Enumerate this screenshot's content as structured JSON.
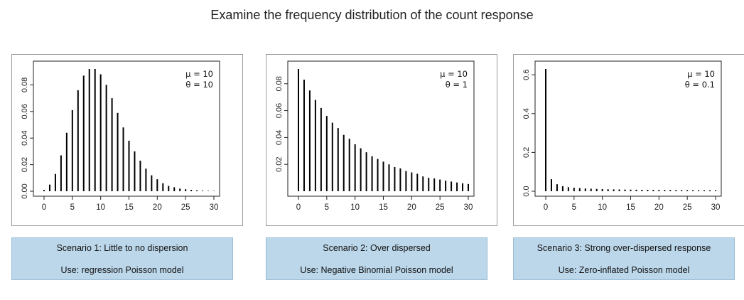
{
  "page": {
    "title": "Examine the frequency distribution of the count response"
  },
  "chart_data": [
    {
      "type": "bar",
      "x": [
        0,
        1,
        2,
        3,
        4,
        5,
        6,
        7,
        8,
        9,
        10,
        11,
        12,
        13,
        14,
        15,
        16,
        17,
        18,
        19,
        20,
        21,
        22,
        23,
        24,
        25,
        26,
        27,
        28,
        29,
        30
      ],
      "values": [
        0.001,
        0.005,
        0.013,
        0.027,
        0.044,
        0.061,
        0.076,
        0.087,
        0.092,
        0.092,
        0.088,
        0.08,
        0.07,
        0.059,
        0.048,
        0.038,
        0.03,
        0.023,
        0.017,
        0.012,
        0.009,
        0.006,
        0.004,
        0.003,
        0.002,
        0.0015,
        0.001,
        0.0007,
        0.0005,
        0.0003,
        0.0002
      ],
      "xlim": [
        0,
        30
      ],
      "ylim": [
        0,
        0.092
      ],
      "xticks": [
        "0",
        "5",
        "10",
        "15",
        "20",
        "25",
        "30"
      ],
      "yticks": [
        "0.00",
        "0.02",
        "0.04",
        "0.06",
        "0.08"
      ],
      "ytick_values": [
        0,
        0.02,
        0.04,
        0.06,
        0.08
      ],
      "legend": [
        "μ = 10",
        "θ = 10"
      ],
      "legend_position": "top-right",
      "caption": [
        "Scenario 1: Little to no dispersion",
        "Use: regression Poisson model"
      ]
    },
    {
      "type": "bar",
      "x": [
        0,
        1,
        2,
        3,
        4,
        5,
        6,
        7,
        8,
        9,
        10,
        11,
        12,
        13,
        14,
        15,
        16,
        17,
        18,
        19,
        20,
        21,
        22,
        23,
        24,
        25,
        26,
        27,
        28,
        29,
        30
      ],
      "values": [
        0.091,
        0.083,
        0.075,
        0.068,
        0.062,
        0.056,
        0.051,
        0.047,
        0.042,
        0.039,
        0.035,
        0.032,
        0.029,
        0.026,
        0.024,
        0.022,
        0.02,
        0.018,
        0.017,
        0.015,
        0.014,
        0.013,
        0.011,
        0.01,
        0.0095,
        0.0087,
        0.0079,
        0.0072,
        0.0065,
        0.0059,
        0.0054
      ],
      "xlim": [
        0,
        30
      ],
      "ylim": [
        0,
        0.091
      ],
      "xticks": [
        "0",
        "5",
        "10",
        "15",
        "20",
        "25",
        "30"
      ],
      "yticks": [
        "0.02",
        "0.04",
        "0.06",
        "0.08"
      ],
      "ytick_values": [
        0.02,
        0.04,
        0.06,
        0.08
      ],
      "legend": [
        "μ = 10",
        "θ = 1"
      ],
      "legend_position": "top-right",
      "caption": [
        "Scenario 2: Over dispersed",
        "Use: Negative Binomial Poisson model"
      ]
    },
    {
      "type": "bar",
      "x": [
        0,
        1,
        2,
        3,
        4,
        5,
        6,
        7,
        8,
        9,
        10,
        11,
        12,
        13,
        14,
        15,
        16,
        17,
        18,
        19,
        20,
        21,
        22,
        23,
        24,
        25,
        26,
        27,
        28,
        29,
        30
      ],
      "values": [
        0.63,
        0.062,
        0.036,
        0.026,
        0.021,
        0.018,
        0.016,
        0.014,
        0.013,
        0.012,
        0.011,
        0.01,
        0.0095,
        0.009,
        0.0085,
        0.008,
        0.0077,
        0.0074,
        0.0071,
        0.0068,
        0.0066,
        0.0064,
        0.0062,
        0.006,
        0.0058,
        0.0056,
        0.0054,
        0.0052,
        0.0051,
        0.005,
        0.0049
      ],
      "xlim": [
        0,
        30
      ],
      "ylim": [
        0,
        0.63
      ],
      "xticks": [
        "0",
        "5",
        "10",
        "15",
        "20",
        "25",
        "30"
      ],
      "yticks": [
        "0.0",
        "0.2",
        "0.4",
        "0.6"
      ],
      "ytick_values": [
        0,
        0.2,
        0.4,
        0.6
      ],
      "legend": [
        "μ = 10",
        "θ = 0.1"
      ],
      "legend_position": "top-right",
      "caption": [
        "Scenario 3: Strong over-dispersed response",
        "Use: Zero-inflated Poisson model"
      ]
    }
  ]
}
